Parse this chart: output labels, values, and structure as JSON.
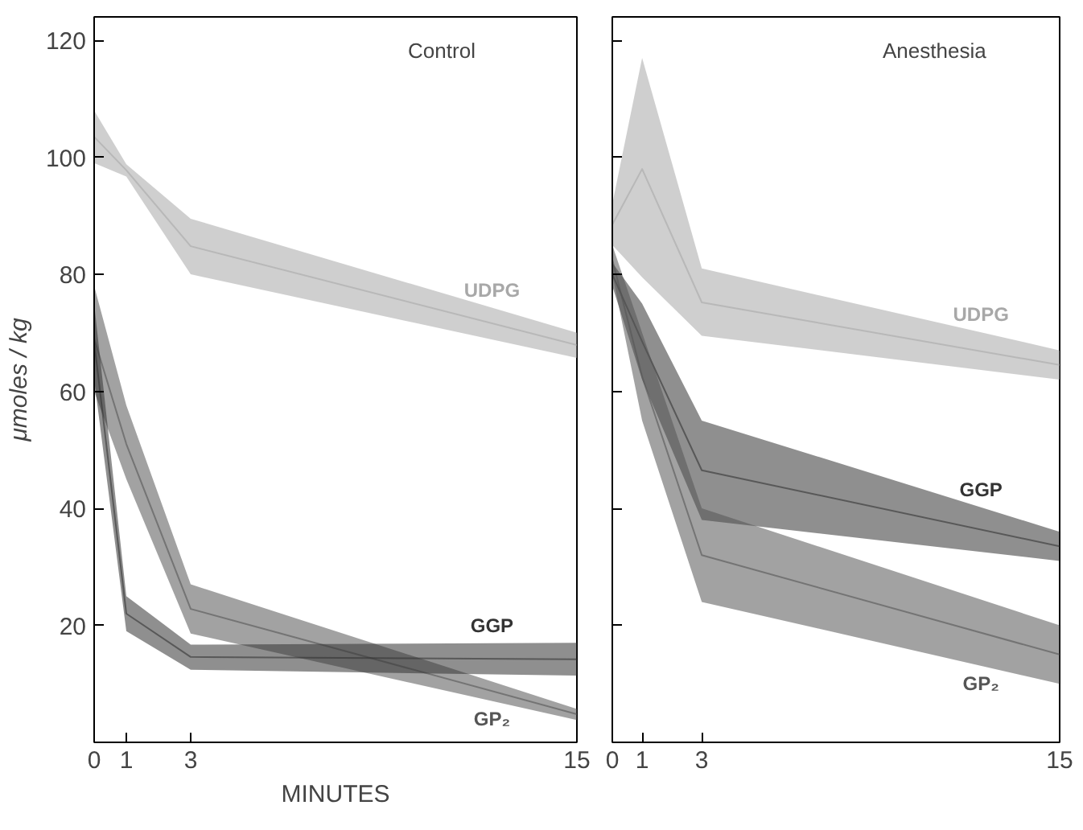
{
  "chart_data": [
    {
      "type": "line",
      "title": "Control",
      "xlabel": "MINUTES",
      "ylabel": "μmoles / kg",
      "x": [
        0,
        1,
        3,
        15
      ],
      "xlim": [
        0,
        15
      ],
      "ylim": [
        0,
        124
      ],
      "xticks": [
        0,
        1,
        3,
        15
      ],
      "yticks": [
        20,
        40,
        60,
        80,
        100,
        120
      ],
      "grid": false,
      "series": [
        {
          "name": "UDPG",
          "color": "#a8a8a8",
          "values": [
            103.5,
            97.8,
            84.8,
            67.9
          ],
          "lower": [
            99,
            96.7,
            80,
            65.7
          ],
          "upper": [
            108,
            98.8,
            89.5,
            70
          ]
        },
        {
          "name": "GP₂",
          "color": "#555555",
          "values": [
            69,
            51,
            22.8,
            4.8
          ],
          "lower": [
            60,
            45,
            18.6,
            3.8
          ],
          "upper": [
            78,
            57.6,
            27,
            5.7
          ]
        },
        {
          "name": "GGP",
          "color": "#333333",
          "values": [
            68.5,
            22,
            14.6,
            14.2
          ],
          "lower": [
            62,
            19,
            12.4,
            11.4
          ],
          "upper": [
            75,
            25,
            16.7,
            17
          ]
        }
      ]
    },
    {
      "type": "line",
      "title": "Anesthesia",
      "x": [
        0,
        1,
        3,
        15
      ],
      "xlim": [
        0,
        15
      ],
      "ylim": [
        0,
        124
      ],
      "xticks": [
        0,
        1,
        3,
        15
      ],
      "yticks": [
        20,
        40,
        60,
        80,
        100,
        120
      ],
      "grid": false,
      "tick_labels": "x",
      "series": [
        {
          "name": "UDPG",
          "color": "#a8a8a8",
          "values": [
            88.5,
            98,
            75.2,
            64.5
          ],
          "lower": [
            85,
            79.5,
            69.5,
            62
          ],
          "upper": [
            92,
            117,
            81,
            67
          ]
        },
        {
          "name": "GGP",
          "color": "#333333",
          "values": [
            80,
            68.5,
            46.5,
            33.5
          ],
          "lower": [
            78,
            62,
            38,
            31
          ],
          "upper": [
            82,
            75,
            55,
            36
          ]
        },
        {
          "name": "GP₂",
          "color": "#555555",
          "values": [
            82.5,
            62.5,
            32,
            15
          ],
          "lower": [
            80,
            55,
            24,
            10
          ],
          "upper": [
            85,
            70,
            40,
            20
          ]
        }
      ]
    }
  ]
}
